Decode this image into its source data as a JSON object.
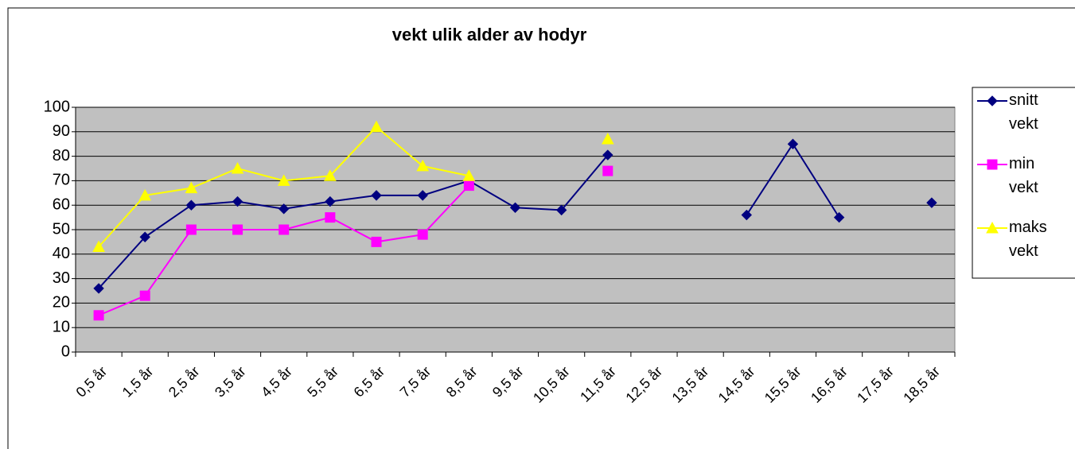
{
  "chart_data": {
    "type": "line",
    "title": "vekt ulik alder av hodyr",
    "categories": [
      "0,5 år",
      "1,5 år",
      "2,5 år",
      "3,5 år",
      "4,5 år",
      "5,5 år",
      "6,5 år",
      "7,5 år",
      "8,5 år",
      "9,5 år",
      "10,5 år",
      "11,5 år",
      "12,5 år",
      "13,5 år",
      "14,5 år",
      "15,5 år",
      "16,5 år",
      "17,5 år",
      "18,5 år"
    ],
    "series": [
      {
        "name": "snitt vekt",
        "color": "#000080",
        "marker": "diamond",
        "values": [
          26,
          47,
          60,
          61.5,
          58.5,
          61.5,
          64,
          64,
          70,
          59,
          58,
          80.5,
          null,
          null,
          56,
          85,
          55,
          null,
          61
        ]
      },
      {
        "name": "min vekt",
        "color": "#ff00ff",
        "marker": "square",
        "values": [
          15,
          23,
          50,
          50,
          50,
          55,
          45,
          48,
          68,
          null,
          null,
          74,
          null,
          null,
          null,
          null,
          null,
          null,
          null
        ]
      },
      {
        "name": "maks vekt",
        "color": "#ffff00",
        "marker": "triangle",
        "values": [
          43,
          64,
          67,
          75,
          70,
          72,
          92,
          76,
          72,
          null,
          null,
          87,
          null,
          null,
          null,
          null,
          null,
          null,
          null
        ]
      }
    ],
    "ylim": [
      0,
      100
    ],
    "yticks": [
      0,
      10,
      20,
      30,
      40,
      50,
      60,
      70,
      80,
      90,
      100
    ],
    "grid": true,
    "legend": "right"
  }
}
